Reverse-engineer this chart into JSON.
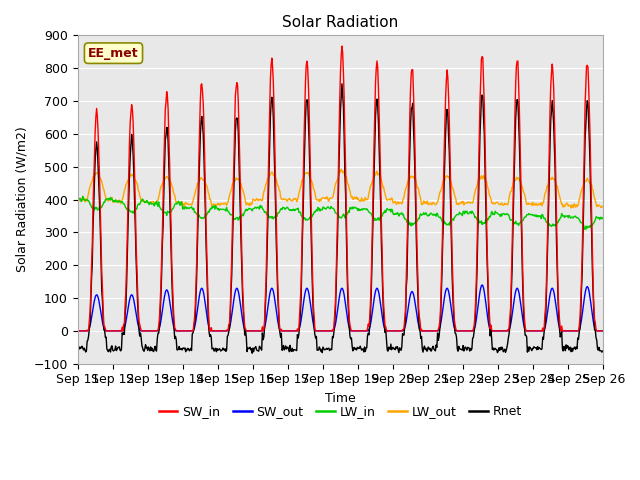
{
  "title": "Solar Radiation",
  "xlabel": "Time",
  "ylabel": "Solar Radiation (W/m2)",
  "ylim": [
    -100,
    900
  ],
  "x_tick_labels": [
    "Sep 11",
    "Sep 12",
    "Sep 13",
    "Sep 14",
    "Sep 15",
    "Sep 16",
    "Sep 17",
    "Sep 18",
    "Sep 19",
    "Sep 20",
    "Sep 21",
    "Sep 22",
    "Sep 23",
    "Sep 24",
    "Sep 25",
    "Sep 26"
  ],
  "annotation_text": "EE_met",
  "annotation_color": "#8B0000",
  "annotation_bg": "#FFFFCC",
  "series_colors": {
    "SW_in": "#FF0000",
    "SW_out": "#0000FF",
    "LW_in": "#00CC00",
    "LW_out": "#FFA500",
    "Rnet": "#000000"
  },
  "plot_bg": "#E8E8E8",
  "n_days": 15,
  "sw_peaks": [
    660,
    690,
    725,
    760,
    760,
    830,
    820,
    860,
    820,
    800,
    780,
    840,
    830,
    810,
    815
  ],
  "sw_out_peaks": [
    110,
    110,
    125,
    130,
    130,
    130,
    130,
    130,
    130,
    120,
    130,
    140,
    130,
    130,
    135
  ],
  "lw_in_base": [
    400,
    395,
    388,
    375,
    370,
    375,
    370,
    375,
    370,
    355,
    355,
    360,
    355,
    350,
    345
  ],
  "lw_out_base": [
    400,
    395,
    390,
    385,
    385,
    400,
    400,
    405,
    400,
    390,
    388,
    390,
    385,
    385,
    380
  ],
  "rnet_night": -55
}
